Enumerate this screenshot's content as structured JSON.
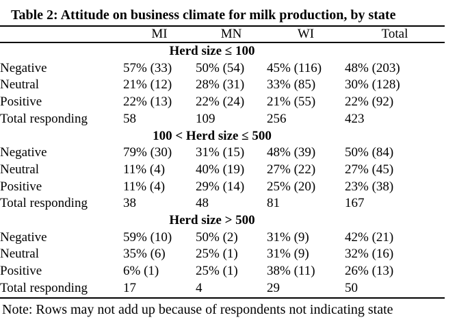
{
  "title": "Table 2: Attitude on business climate for milk production, by state",
  "columns": [
    "",
    "MI",
    "MN",
    "WI",
    "Total"
  ],
  "sections": [
    {
      "header": "Herd size ≤ 100",
      "rows": [
        {
          "label": "Negative",
          "cells": [
            "57% (33)",
            "50% (54)",
            "45% (116)",
            "48% (203)"
          ]
        },
        {
          "label": "Neutral",
          "cells": [
            "21% (12)",
            "28% (31)",
            "33% (85)",
            "30% (128)"
          ]
        },
        {
          "label": "Positive",
          "cells": [
            "22% (13)",
            "22% (24)",
            "21% (55)",
            "22% (92)"
          ]
        },
        {
          "label": "Total responding",
          "cells": [
            "58",
            "109",
            "256",
            "423"
          ]
        }
      ]
    },
    {
      "header": "100 < Herd size ≤ 500",
      "rows": [
        {
          "label": "Negative",
          "cells": [
            "79% (30)",
            "31% (15)",
            "48% (39)",
            "50% (84)"
          ]
        },
        {
          "label": "Neutral",
          "cells": [
            "11% (4)",
            "40% (19)",
            "27% (22)",
            "27% (45)"
          ]
        },
        {
          "label": "Positive",
          "cells": [
            "11% (4)",
            "29% (14)",
            "25% (20)",
            "23% (38)"
          ]
        },
        {
          "label": "Total responding",
          "cells": [
            "38",
            "48",
            "81",
            "167"
          ]
        }
      ]
    },
    {
      "header": "Herd size > 500",
      "rows": [
        {
          "label": "Negative",
          "cells": [
            "59% (10)",
            "50% (2)",
            "31% (9)",
            "42% (21)"
          ]
        },
        {
          "label": "Neutral",
          "cells": [
            "35% (6)",
            "25% (1)",
            "31% (9)",
            "32% (16)"
          ]
        },
        {
          "label": "Positive",
          "cells": [
            "6% (1)",
            "25% (1)",
            "38% (11)",
            "26% (13)"
          ]
        },
        {
          "label": "Total responding",
          "cells": [
            "17",
            "4",
            "29",
            "50"
          ]
        }
      ]
    }
  ],
  "note": "Note: Rows may not add up because of respondents not indicating state",
  "colors": {
    "text": "#000000",
    "background": "#ffffff",
    "rule": "#000000"
  }
}
